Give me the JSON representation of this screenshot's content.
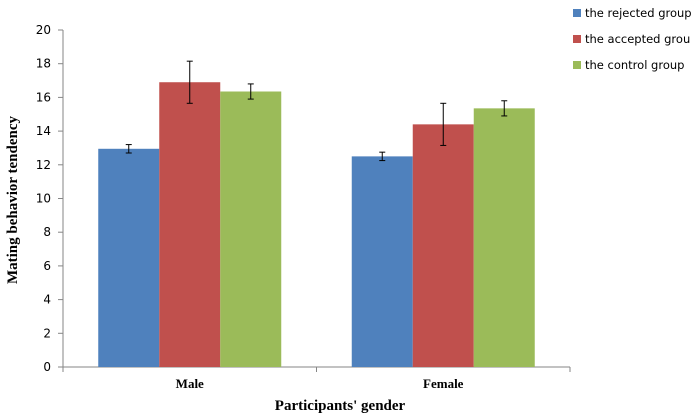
{
  "chart_data": {
    "type": "bar",
    "title": "",
    "xlabel": "Participants' gender",
    "ylabel": "Mating behavior tendency",
    "categories": [
      "Male",
      "Female"
    ],
    "ylim": [
      0,
      20
    ],
    "yticks": [
      0,
      2,
      4,
      6,
      8,
      10,
      12,
      14,
      16,
      18,
      20
    ],
    "grid": false,
    "legend_position": "top-right",
    "series": [
      {
        "name": "the rejected group",
        "color": "#4F81BD",
        "values": [
          12.95,
          12.5
        ],
        "errors": [
          0.25,
          0.25
        ]
      },
      {
        "name": "the accepted group",
        "color": "#C0504D",
        "values": [
          16.9,
          14.4
        ],
        "errors": [
          1.25,
          1.25
        ]
      },
      {
        "name": "the control group",
        "color": "#9BBB59",
        "values": [
          16.35,
          15.35
        ],
        "errors": [
          0.45,
          0.45
        ]
      }
    ]
  }
}
